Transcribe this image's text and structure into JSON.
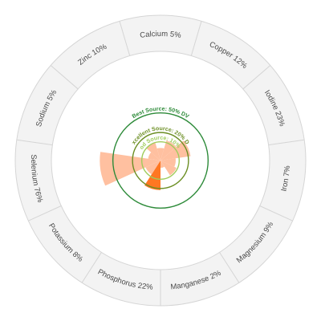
{
  "chart_data": {
    "type": "radial-bar",
    "unit": "% DV",
    "categories": [
      "Calcium",
      "Copper",
      "Iodine",
      "Iron",
      "Magnesium",
      "Manganese",
      "Phosphorus",
      "Potassium",
      "Selenium",
      "Sodium",
      "Zinc"
    ],
    "values": [
      5,
      12,
      23,
      7,
      9,
      2,
      22,
      8,
      76,
      5,
      10
    ],
    "labels": [
      "Calcium 5%",
      "Copper 12%",
      "Iodine 23%",
      "Iron 7%",
      "Magnesium 9%",
      "Manganese 2%",
      "Phosphorus 22%",
      "Potassium 8%",
      "Selenium 76%",
      "Sodium 5%",
      "Zinc 10%"
    ],
    "highlighted": [
      "Selenium",
      "Iodine",
      "Phosphorus"
    ],
    "thresholds": [
      {
        "label": "Good Source: 10% DV",
        "value": 10,
        "color": "#9fcc5b"
      },
      {
        "label": "Excellent Source: 20% DV",
        "value": 20,
        "color": "#6b8e23"
      },
      {
        "label": "Best Source: 50% DV",
        "value": 50,
        "color": "#2e8b3a"
      }
    ],
    "colors": {
      "bar_dark": "#ff7722",
      "bar_light": "#ffc0a0",
      "ring_fill": "#f3f3f3",
      "ring_border": "#d5d5d5"
    }
  }
}
